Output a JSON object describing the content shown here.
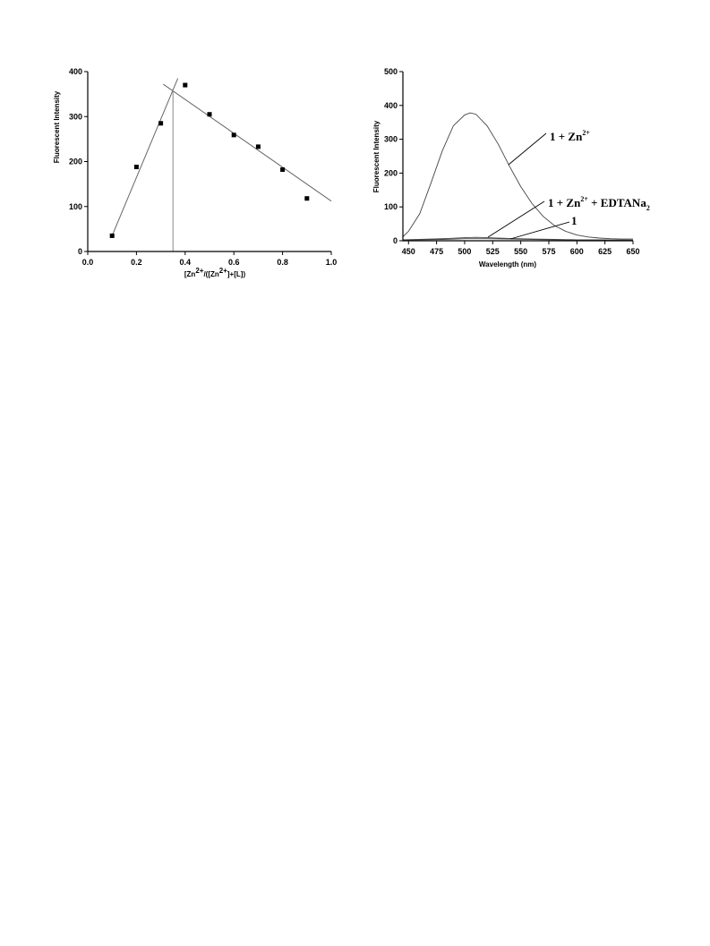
{
  "chart_data": [
    {
      "type": "scatter",
      "ylabel": "Fluorescent Intensity",
      "xlabel_parts": [
        "[Zn",
        "2+",
        "/([Zn",
        "2+",
        "]+[L])"
      ],
      "xlim": [
        0.0,
        1.0
      ],
      "ylim": [
        0,
        400
      ],
      "xticks": [
        "0.0",
        "0.2",
        "0.4",
        "0.6",
        "0.8",
        "1.0"
      ],
      "yticks": [
        "0",
        "100",
        "200",
        "300",
        "400"
      ],
      "xtick_values": [
        0.0,
        0.2,
        0.4,
        0.6,
        0.8,
        1.0
      ],
      "ytick_values": [
        0,
        100,
        200,
        300,
        400
      ],
      "points": [
        {
          "x": 0.1,
          "y": 35
        },
        {
          "x": 0.2,
          "y": 188
        },
        {
          "x": 0.3,
          "y": 285
        },
        {
          "x": 0.4,
          "y": 370
        },
        {
          "x": 0.5,
          "y": 305
        },
        {
          "x": 0.6,
          "y": 259
        },
        {
          "x": 0.7,
          "y": 233
        },
        {
          "x": 0.8,
          "y": 182
        },
        {
          "x": 0.9,
          "y": 118
        }
      ],
      "fit_lines": [
        {
          "from": {
            "x": 0.1,
            "y": 35
          },
          "to": {
            "x": 0.37,
            "y": 385
          }
        },
        {
          "from": {
            "x": 0.31,
            "y": 372
          },
          "to": {
            "x": 1.0,
            "y": 112
          }
        }
      ],
      "vertical_marker_x": 0.35,
      "vertical_marker_y": 362,
      "grid": false
    },
    {
      "type": "line",
      "ylabel": "Fluorescent Intensity",
      "xlabel": "Wavelength (nm)",
      "xlim": [
        445,
        650
      ],
      "ylim": [
        0,
        500
      ],
      "xticks": [
        "450",
        "475",
        "500",
        "525",
        "550",
        "575",
        "600",
        "625",
        "650"
      ],
      "yticks": [
        "0",
        "100",
        "200",
        "300",
        "400",
        "500"
      ],
      "xtick_values": [
        450,
        475,
        500,
        525,
        550,
        575,
        600,
        625,
        650
      ],
      "ytick_values": [
        0,
        100,
        200,
        300,
        400,
        500
      ],
      "series": [
        {
          "label_parts": [
            "1 + Zn",
            "2+"
          ],
          "x": [
            445,
            450,
            460,
            470,
            480,
            490,
            500,
            505,
            510,
            520,
            530,
            540,
            550,
            560,
            570,
            580,
            590,
            600,
            610,
            620,
            630,
            640,
            650
          ],
          "y": [
            12,
            28,
            80,
            170,
            265,
            340,
            372,
            378,
            374,
            340,
            285,
            220,
            160,
            110,
            72,
            45,
            28,
            17,
            11,
            8,
            6,
            5,
            5
          ]
        },
        {
          "label_parts": [
            "1 + Zn",
            "2+",
            " + EDTANa",
            "2"
          ],
          "x": [
            445,
            460,
            480,
            500,
            510,
            520,
            540,
            560,
            580,
            600,
            620,
            650
          ],
          "y": [
            3,
            4,
            6,
            9,
            10,
            9,
            7,
            5,
            4,
            3,
            3,
            2
          ]
        },
        {
          "label_parts": [
            "1"
          ],
          "x": [
            445,
            460,
            480,
            500,
            510,
            520,
            540,
            560,
            580,
            600,
            620,
            650
          ],
          "y": [
            2,
            3,
            4,
            6,
            6,
            6,
            5,
            4,
            3,
            2,
            2,
            1
          ]
        }
      ],
      "grid": false
    }
  ]
}
